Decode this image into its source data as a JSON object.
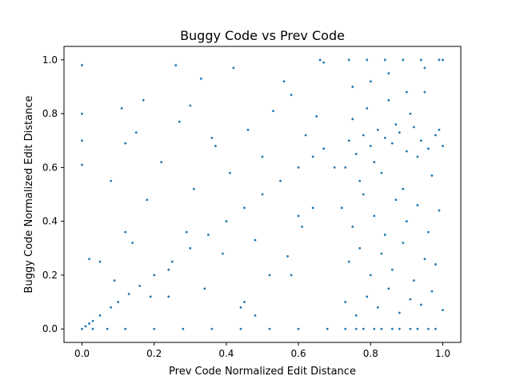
{
  "chart_data": {
    "type": "scatter",
    "title": "Buggy Code vs Prev Code",
    "xlabel": "Prev Code Normalized Edit Distance",
    "ylabel": "Buggy Code Normalized Edit Distance",
    "xlim": [
      -0.05,
      1.05
    ],
    "ylim": [
      -0.05,
      1.05
    ],
    "x_ticks": [
      "0.0",
      "0.2",
      "0.4",
      "0.6",
      "0.8",
      "1.0"
    ],
    "y_ticks": [
      "0.0",
      "0.2",
      "0.4",
      "0.6",
      "0.8",
      "1.0"
    ],
    "grid": false,
    "marker_color": "#1f77b4",
    "series": [
      {
        "x": [
          0.0,
          0.01,
          0.02,
          0.03,
          0.05,
          0.08,
          0.1,
          0.13,
          0.16,
          0.2,
          0.25,
          0.3,
          0.35,
          0.4,
          0.45,
          0.5,
          0.55,
          0.6,
          0.64,
          0.67,
          0.0,
          0.0,
          0.0,
          0.0,
          0.11,
          0.17,
          0.26,
          0.33,
          0.42,
          0.56,
          0.66,
          0.67,
          0.08,
          0.12,
          0.18,
          0.22,
          0.27,
          0.31,
          0.36,
          0.41,
          0.46,
          0.5,
          0.53,
          0.58,
          0.62,
          0.65,
          0.05,
          0.09,
          0.14,
          0.19,
          0.24,
          0.29,
          0.34,
          0.39,
          0.44,
          0.48,
          0.52,
          0.57,
          0.61,
          0.64,
          0.03,
          0.07,
          0.12,
          0.2,
          0.28,
          0.36,
          0.44,
          0.52,
          0.6,
          0.68,
          0.74,
          0.76,
          0.78,
          0.8,
          0.82,
          0.84,
          0.86,
          0.88,
          0.9,
          0.92,
          0.94,
          0.96,
          0.98,
          1.0,
          0.73,
          0.75,
          0.77,
          0.79,
          0.81,
          0.83,
          0.85,
          0.87,
          0.89,
          0.91,
          0.93,
          0.95,
          0.97,
          0.99,
          0.72,
          0.75,
          0.78,
          0.81,
          0.84,
          0.87,
          0.9,
          0.93,
          0.96,
          0.99,
          0.74,
          0.77,
          0.8,
          0.83,
          0.86,
          0.89,
          0.92,
          0.95,
          0.98,
          0.73,
          0.76,
          0.79,
          0.82,
          0.85,
          0.88,
          0.91,
          0.94,
          0.97,
          1.0,
          0.75,
          0.8,
          0.85,
          0.9,
          0.95,
          1.0,
          0.74,
          0.79,
          0.84,
          0.89,
          0.94,
          0.99,
          0.76,
          0.81,
          0.86,
          0.91,
          0.96,
          0.73,
          0.78,
          0.83,
          0.88,
          0.93,
          0.98,
          0.02,
          0.15,
          0.3,
          0.45,
          0.6,
          0.12,
          0.24,
          0.37,
          0.48,
          0.58,
          0.7
        ],
        "y": [
          0.0,
          0.01,
          0.02,
          0.03,
          0.05,
          0.08,
          0.1,
          0.13,
          0.16,
          0.2,
          0.25,
          0.3,
          0.35,
          0.4,
          0.45,
          0.5,
          0.55,
          0.6,
          0.64,
          0.67,
          0.98,
          0.8,
          0.7,
          0.61,
          0.82,
          0.85,
          0.98,
          0.93,
          0.97,
          0.92,
          1.0,
          0.99,
          0.55,
          0.69,
          0.48,
          0.62,
          0.77,
          0.52,
          0.71,
          0.58,
          0.74,
          0.64,
          0.81,
          0.87,
          0.72,
          0.79,
          0.25,
          0.18,
          0.32,
          0.12,
          0.22,
          0.36,
          0.15,
          0.28,
          0.08,
          0.33,
          0.2,
          0.27,
          0.38,
          0.45,
          0.0,
          0.0,
          0.0,
          0.0,
          0.0,
          0.0,
          0.0,
          0.0,
          0.0,
          0.0,
          0.7,
          0.65,
          0.72,
          0.68,
          0.74,
          0.71,
          0.69,
          0.73,
          0.66,
          0.75,
          0.7,
          0.67,
          0.72,
          0.68,
          0.6,
          0.78,
          0.55,
          0.82,
          0.62,
          0.58,
          0.85,
          0.76,
          0.52,
          0.8,
          0.64,
          0.88,
          0.57,
          0.74,
          0.45,
          0.38,
          0.5,
          0.42,
          0.35,
          0.48,
          0.4,
          0.46,
          0.36,
          0.44,
          0.25,
          0.3,
          0.2,
          0.28,
          0.22,
          0.32,
          0.18,
          0.26,
          0.24,
          0.1,
          0.05,
          0.12,
          0.08,
          0.15,
          0.06,
          0.11,
          0.09,
          0.14,
          0.07,
          0.9,
          0.92,
          0.95,
          0.88,
          0.97,
          1.0,
          1.0,
          1.0,
          1.0,
          1.0,
          1.0,
          1.0,
          0.0,
          0.0,
          0.0,
          0.0,
          0.0,
          0.0,
          0.0,
          0.0,
          0.0,
          0.0,
          0.0,
          0.26,
          0.73,
          0.83,
          0.1,
          0.42,
          0.36,
          0.12,
          0.68,
          0.05,
          0.2,
          0.6
        ]
      }
    ]
  }
}
